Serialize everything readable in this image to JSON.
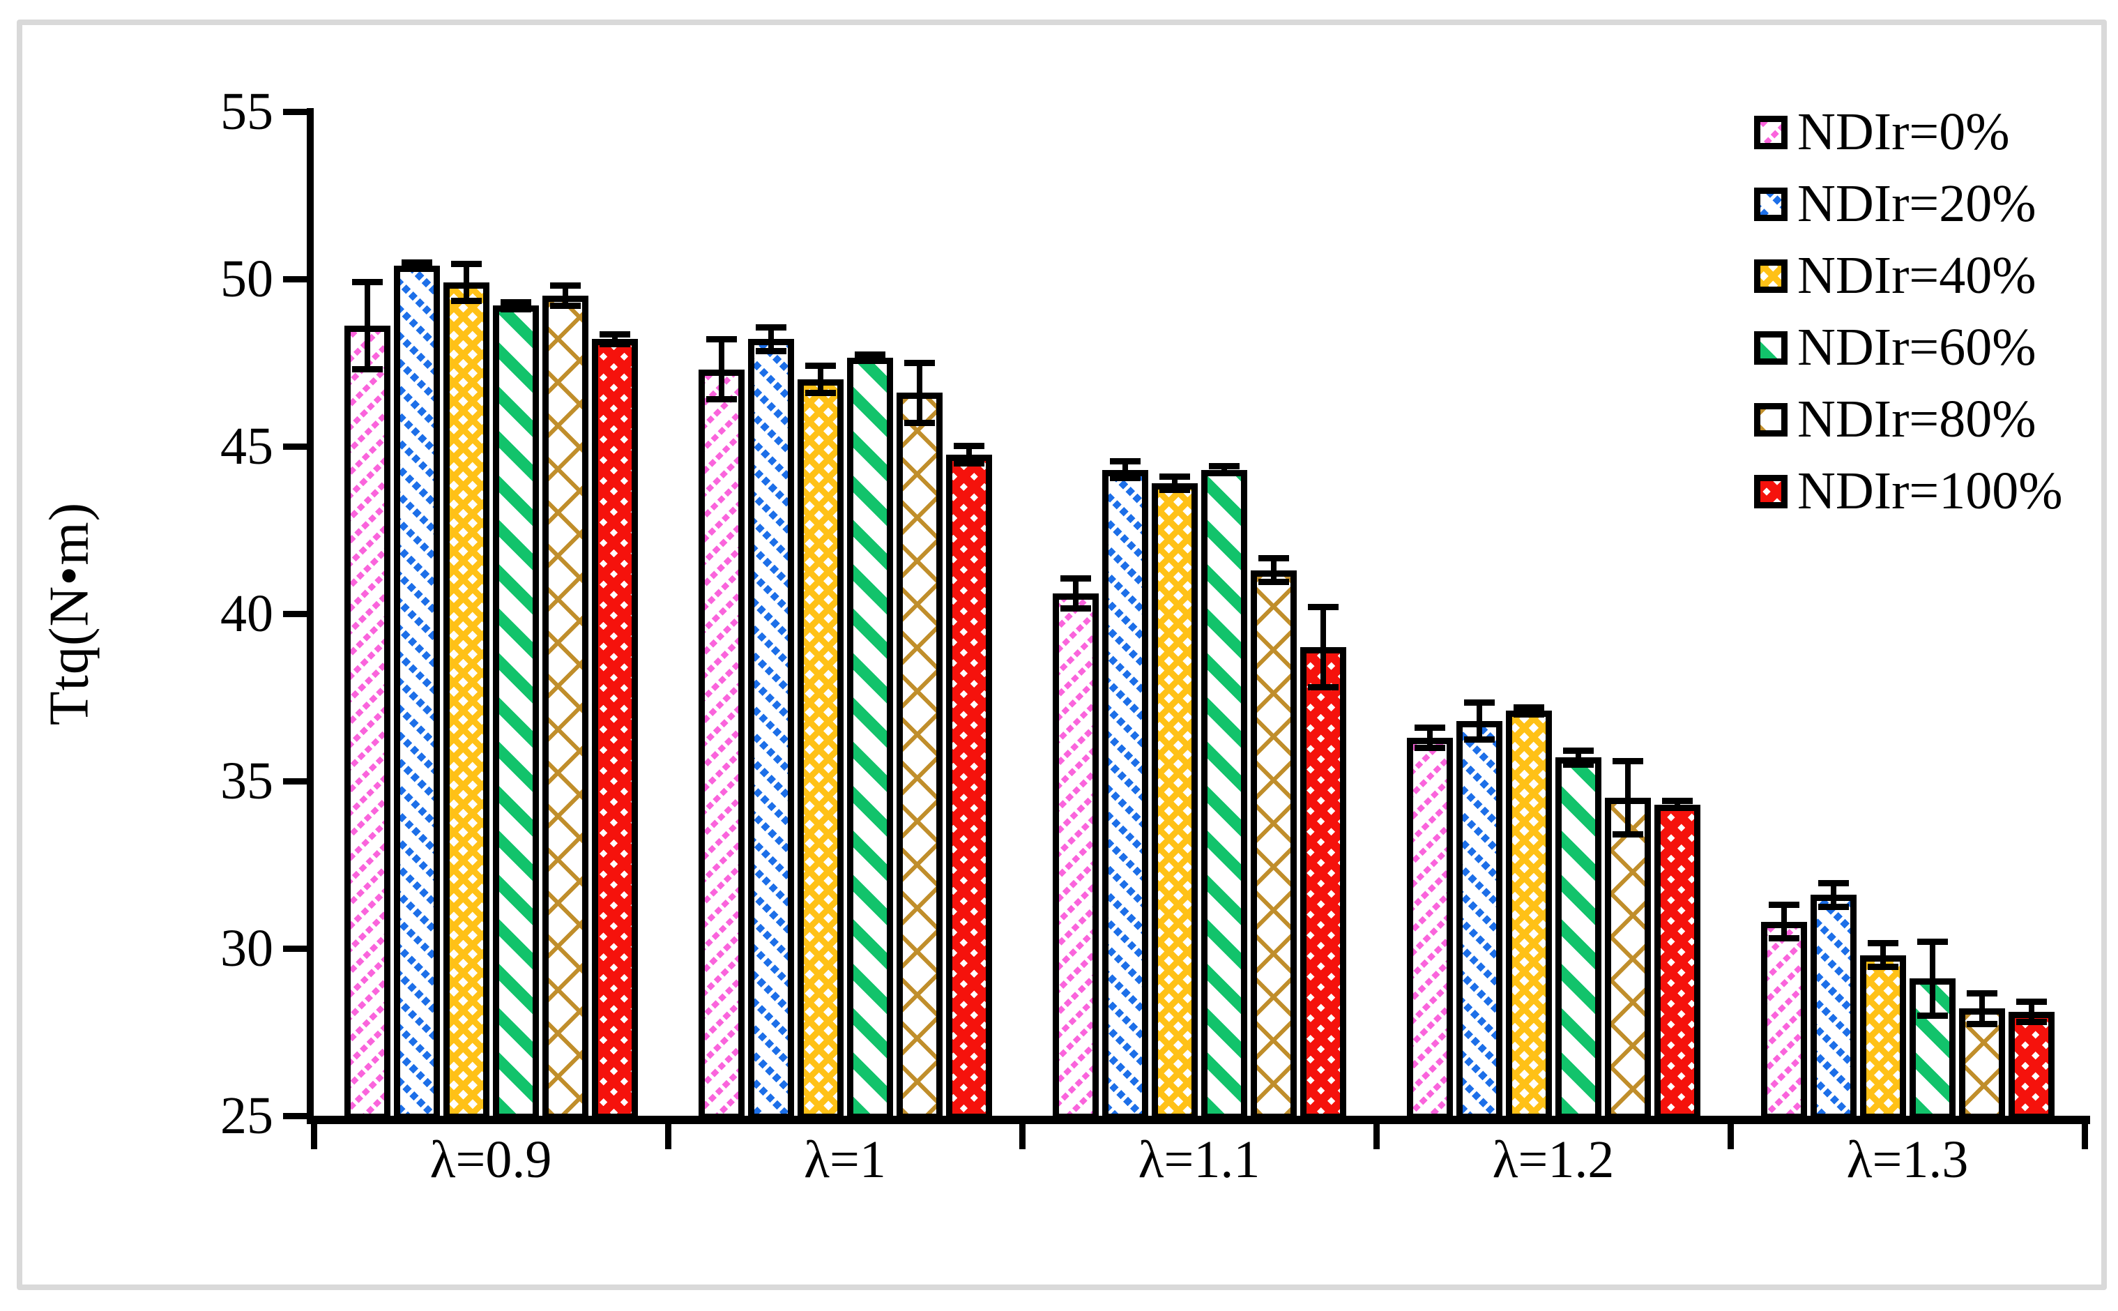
{
  "frame": {
    "border_color": "#D9D9D9",
    "background": "#FFFFFF"
  },
  "chart_data": {
    "type": "bar",
    "title": "",
    "ylabel": "Ttq(N•m)",
    "xlabel": "",
    "categories": [
      "λ=0.9",
      "λ=1",
      "λ=1.1",
      "λ=1.2",
      "λ=1.3"
    ],
    "yticks": [
      25,
      30,
      35,
      40,
      45,
      50,
      55
    ],
    "ylim": [
      25,
      55
    ],
    "grid": false,
    "legend_position": "top-right",
    "error_bars": true,
    "bar_outline_color": "#000000",
    "series": [
      {
        "name": "NDIr=0%",
        "color": "#FA64DC",
        "pattern": "pink-dashed-down-diagonal",
        "values": [
          48.6,
          47.3,
          40.6,
          36.3,
          30.8
        ],
        "errors": [
          1.3,
          0.9,
          0.45,
          0.3,
          0.5
        ]
      },
      {
        "name": "NDIr=20%",
        "color": "#1D6FE8",
        "pattern": "blue-dashed-up-diagonal",
        "values": [
          50.4,
          48.2,
          44.3,
          36.8,
          31.6
        ],
        "errors": [
          0.1,
          0.35,
          0.25,
          0.55,
          0.35
        ]
      },
      {
        "name": "NDIr=40%",
        "color": "#FFC117",
        "pattern": "yellow-diamond-checker",
        "values": [
          49.9,
          47.0,
          43.9,
          37.1,
          29.8
        ],
        "errors": [
          0.55,
          0.4,
          0.2,
          0.1,
          0.35
        ]
      },
      {
        "name": "NDIr=60%",
        "color": "#12C36B",
        "pattern": "green-wide-up-diagonal",
        "values": [
          49.2,
          47.65,
          44.3,
          35.7,
          29.1
        ],
        "errors": [
          0.1,
          0.1,
          0.1,
          0.2,
          1.1
        ]
      },
      {
        "name": "NDIr=80%",
        "color": "#C08E2B",
        "pattern": "tan-diamond-lattice",
        "values": [
          49.5,
          46.6,
          41.3,
          34.5,
          28.2
        ],
        "errors": [
          0.3,
          0.9,
          0.35,
          1.1,
          0.45
        ]
      },
      {
        "name": "NDIr=100%",
        "color": "#F5120C",
        "pattern": "red-dense-checker",
        "values": [
          48.2,
          44.75,
          39.0,
          34.3,
          28.1
        ],
        "errors": [
          0.15,
          0.27,
          1.2,
          0.1,
          0.3
        ]
      }
    ]
  }
}
